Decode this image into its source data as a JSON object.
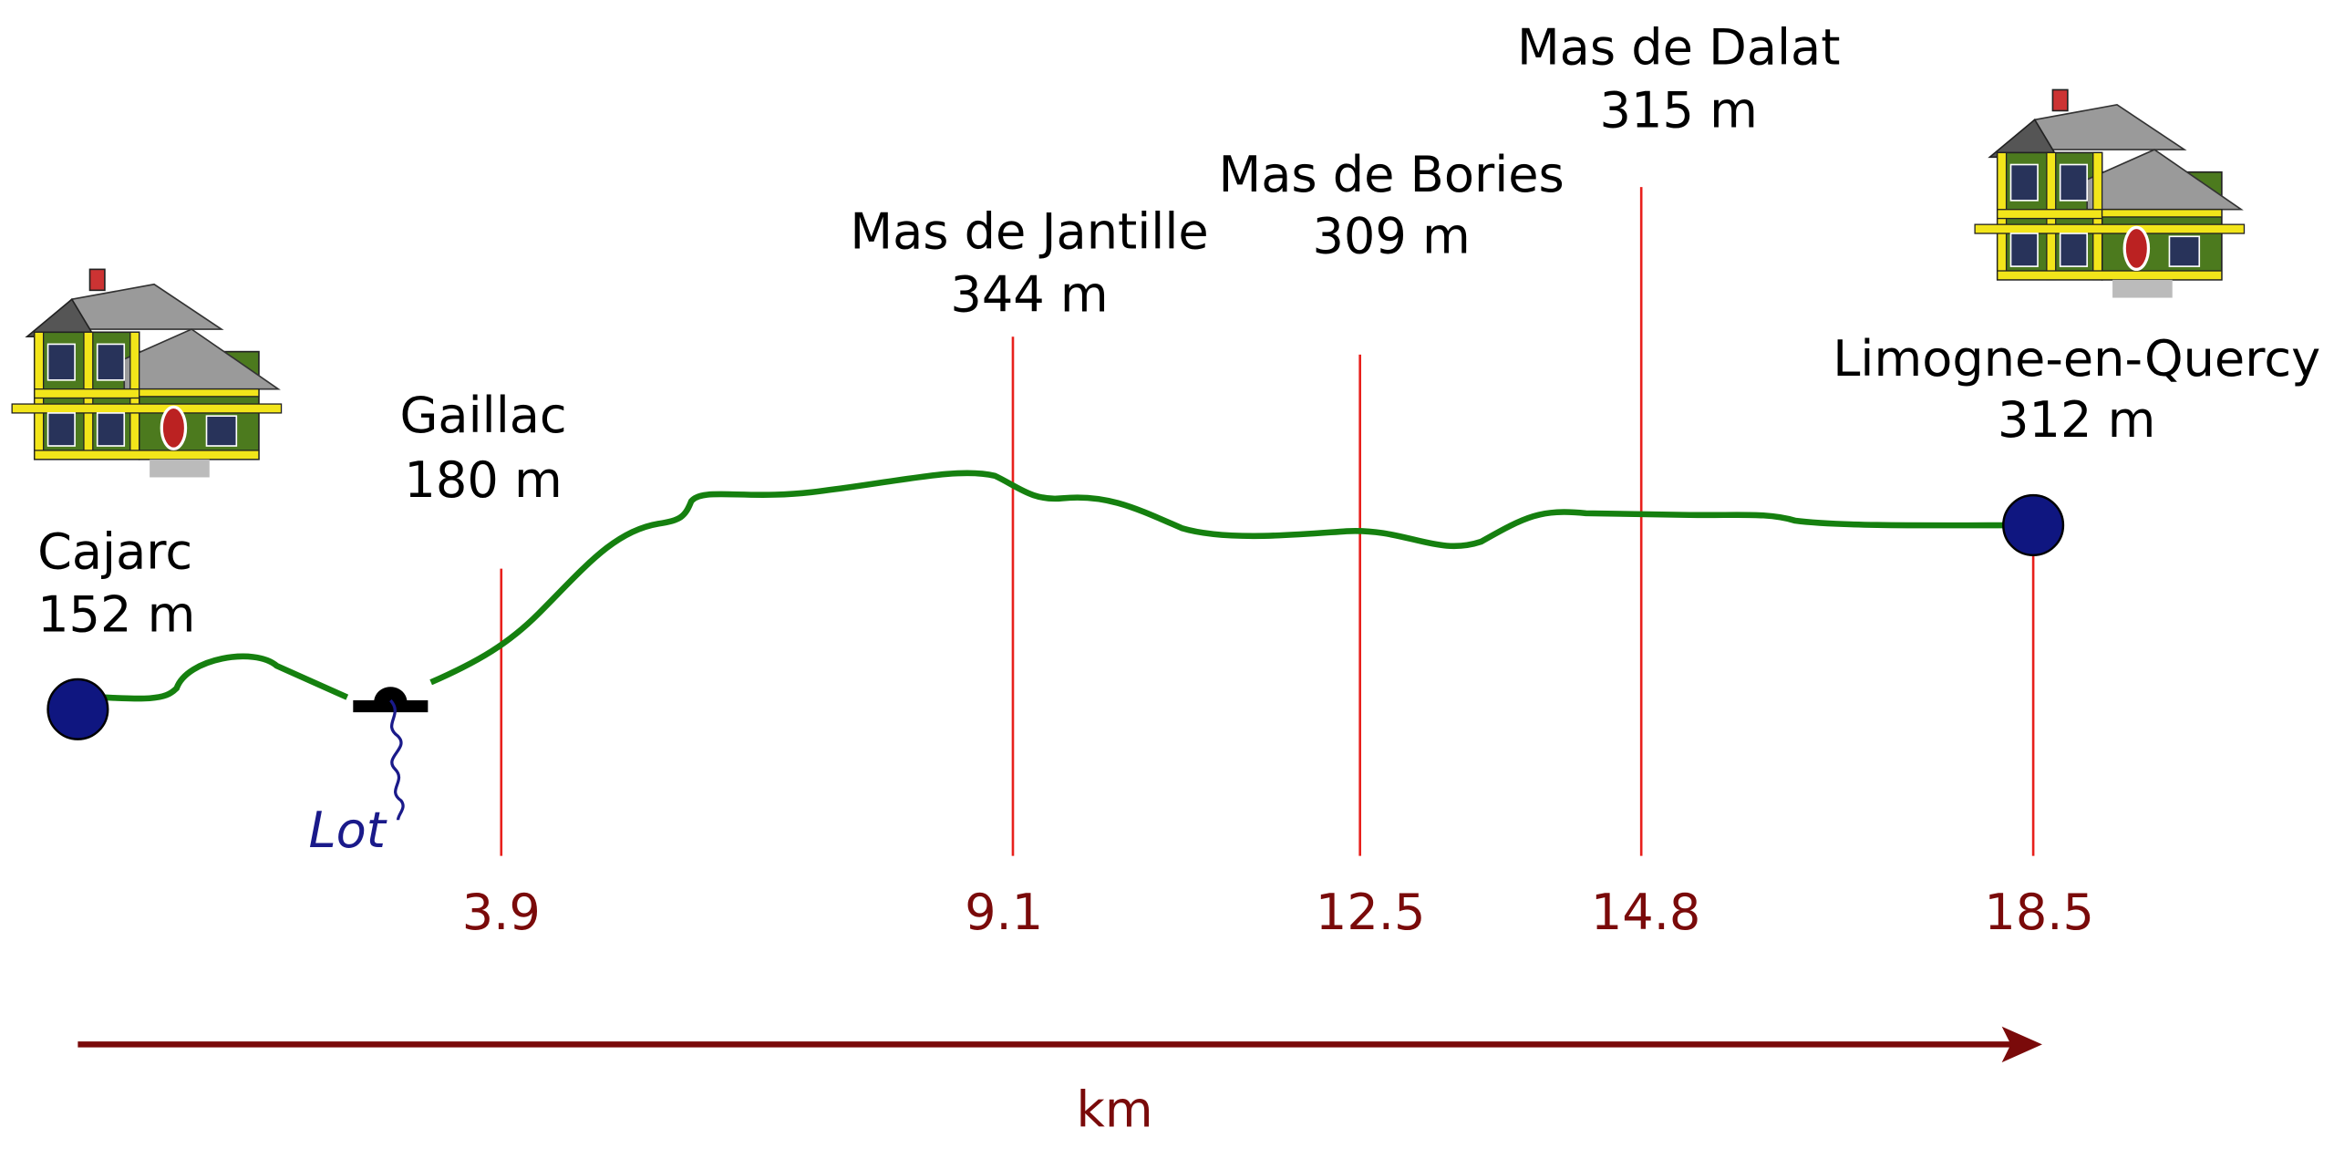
{
  "start": {
    "name": "Cajarc",
    "elevation": "152 m"
  },
  "river": "Lot",
  "waypoints": [
    {
      "name": "Gaillac",
      "elevation": "180 m",
      "km": "3.9"
    },
    {
      "name": "Mas de Jantille",
      "elevation": "344 m",
      "km": "9.1"
    },
    {
      "name": "Mas de Bories",
      "elevation": "309 m",
      "km": "12.5"
    },
    {
      "name": "Mas de Dalat",
      "elevation": "315 m",
      "km": "14.8"
    }
  ],
  "end": {
    "name": "Limogne-en-Quercy",
    "elevation": "312 m",
    "km": "18.5"
  },
  "axis_label": "km"
}
